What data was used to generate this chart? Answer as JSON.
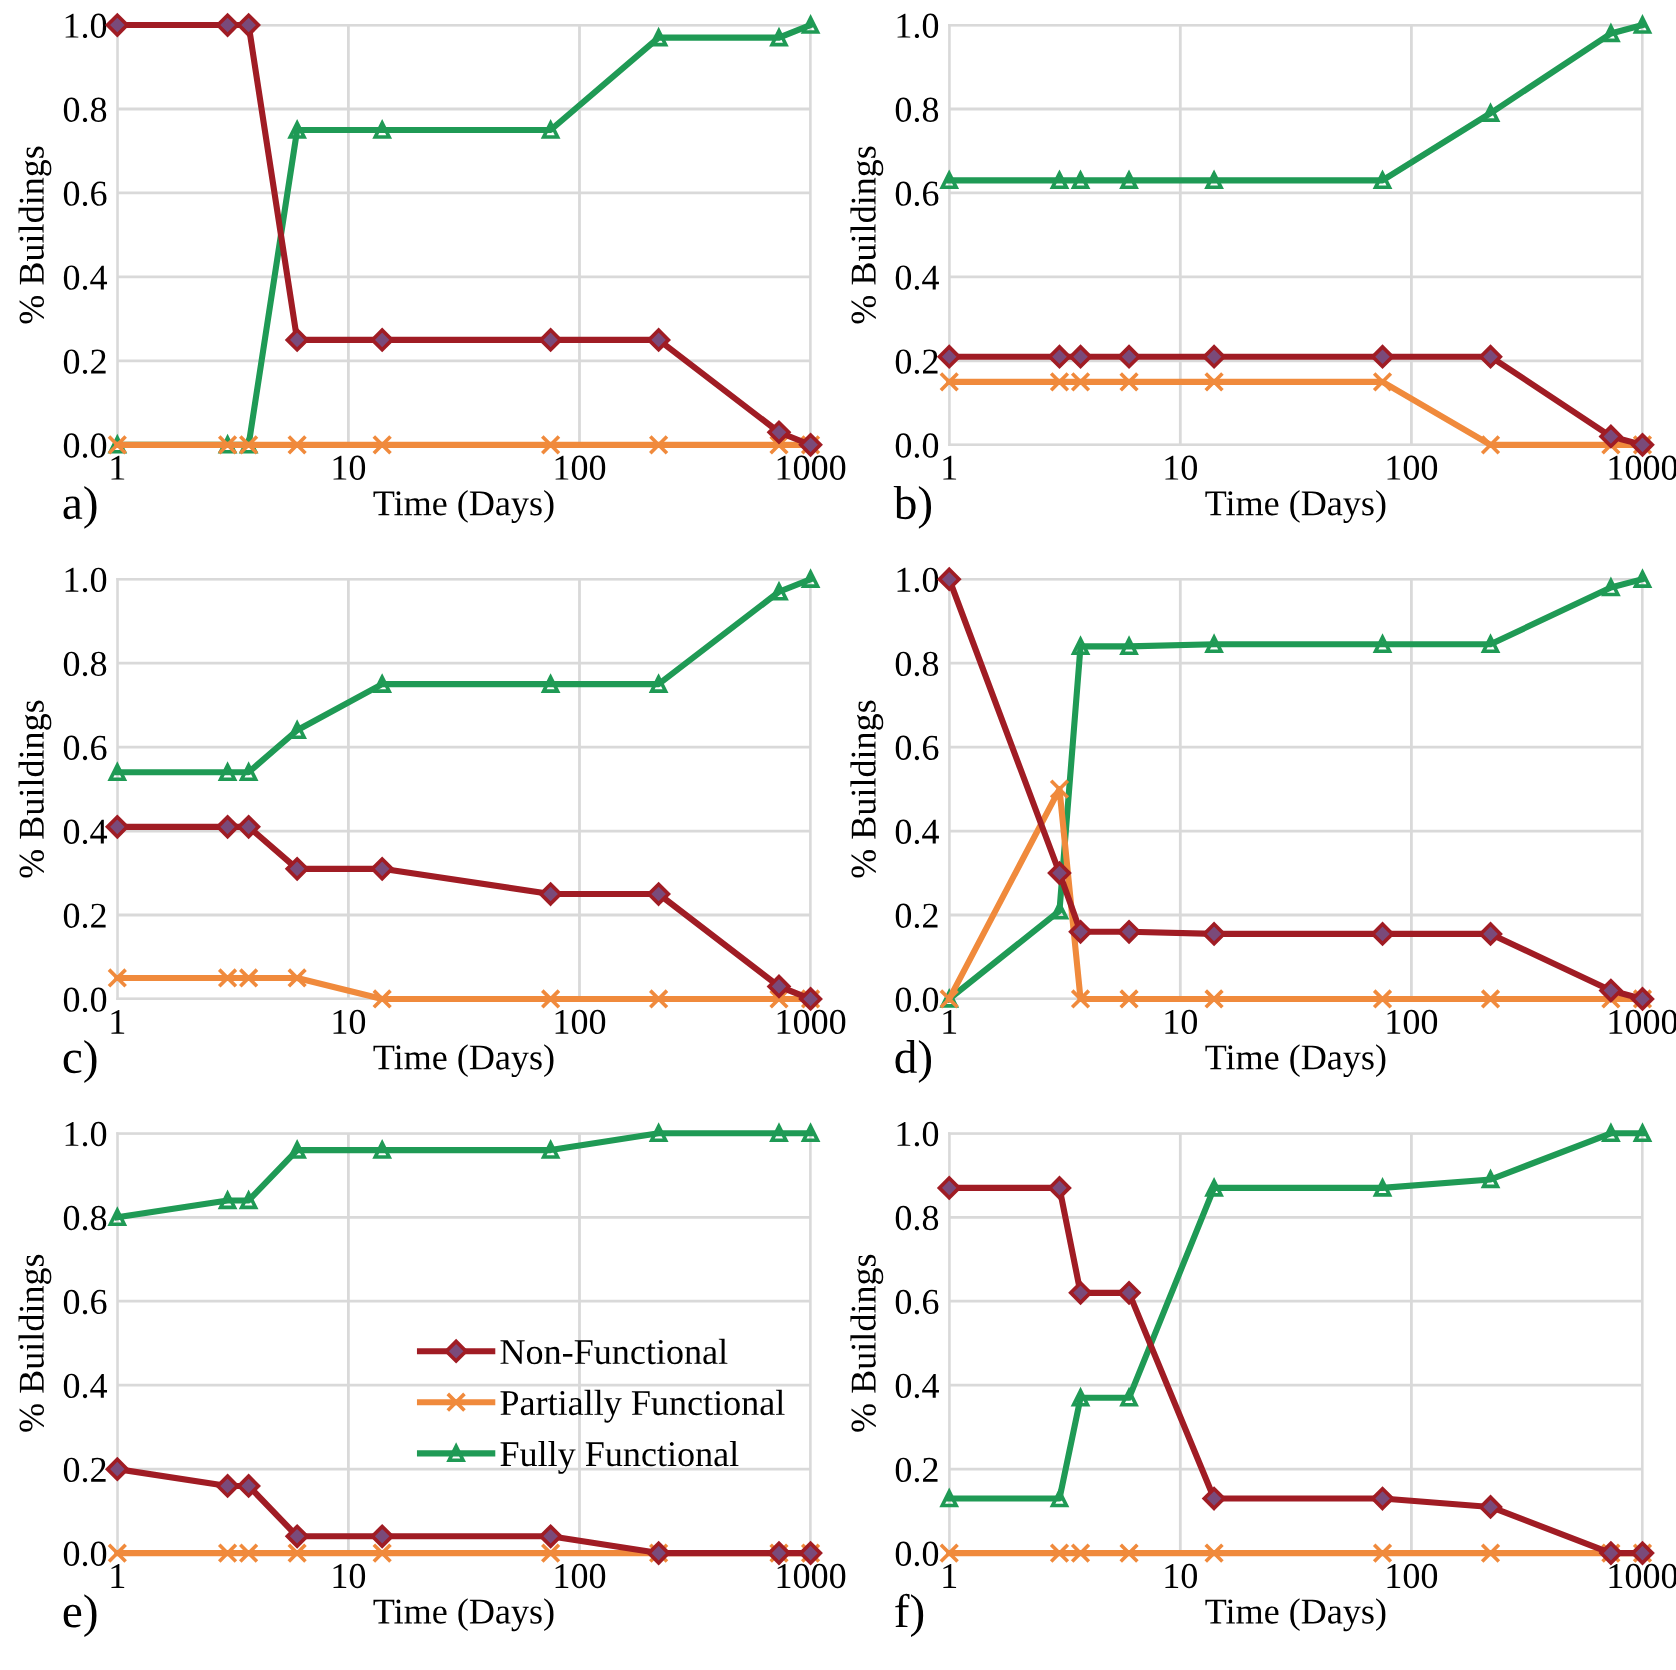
{
  "chart_data": [
    {
      "type": "line",
      "xlabel": "Time (Days)",
      "ylabel": "% Buildings",
      "annotations": [
        "a)"
      ],
      "x": [
        1,
        3,
        3.7,
        6,
        14,
        75,
        220,
        730,
        1000
      ],
      "xlim": [
        1,
        1000
      ],
      "ylim": [
        0,
        1
      ],
      "log": "x",
      "grid": true,
      "xticks": [
        1,
        10,
        100,
        1000
      ],
      "yticks": [
        {
          "value": 0,
          "label": "0.0"
        },
        {
          "value": 0.2,
          "label": "0.2"
        },
        {
          "value": 0.4,
          "label": "0.4"
        },
        {
          "value": 0.6,
          "label": "0.6"
        },
        {
          "value": 0.8,
          "label": "0.8"
        },
        {
          "value": 1,
          "label": "1.0"
        }
      ],
      "series": [
        {
          "color": "#a01c24",
          "marker": "diamond",
          "values": [
            1,
            1,
            1,
            0.25,
            0.25,
            0.25,
            0.25,
            0.03,
            0
          ]
        },
        {
          "color": "#f08a3c",
          "marker": "cross",
          "values": [
            0,
            0,
            0,
            0,
            0,
            0,
            0,
            0,
            0
          ]
        },
        {
          "color": "#1f9a55",
          "marker": "triangle",
          "values": [
            0,
            0,
            0,
            0.75,
            0.75,
            0.75,
            0.97,
            0.97,
            1
          ]
        }
      ]
    },
    {
      "type": "line",
      "xlabel": "Time (Days)",
      "ylabel": "% Buildings",
      "annotations": [
        "b)"
      ],
      "x": [
        1,
        3,
        3.7,
        6,
        14,
        75,
        220,
        730,
        1000
      ],
      "xlim": [
        1,
        1000
      ],
      "ylim": [
        0,
        1
      ],
      "log": "x",
      "grid": true,
      "xticks": [
        1,
        10,
        100,
        1000
      ],
      "yticks": [
        {
          "value": 0,
          "label": "0.0"
        },
        {
          "value": 0.2,
          "label": "0.2"
        },
        {
          "value": 0.4,
          "label": "0.4"
        },
        {
          "value": 0.6,
          "label": "0.6"
        },
        {
          "value": 0.8,
          "label": "0.8"
        },
        {
          "value": 1,
          "label": "1.0"
        }
      ],
      "series": [
        {
          "color": "#a01c24",
          "marker": "diamond",
          "values": [
            0.21,
            0.21,
            0.21,
            0.21,
            0.21,
            0.21,
            0.21,
            0.02,
            0
          ]
        },
        {
          "color": "#f08a3c",
          "marker": "cross",
          "values": [
            0.15,
            0.15,
            0.15,
            0.15,
            0.15,
            0.15,
            0,
            0,
            0
          ]
        },
        {
          "color": "#1f9a55",
          "marker": "triangle",
          "values": [
            0.63,
            0.63,
            0.63,
            0.63,
            0.63,
            0.63,
            0.79,
            0.98,
            1
          ]
        }
      ]
    },
    {
      "type": "line",
      "xlabel": "Time (Days)",
      "ylabel": "% Buildings",
      "annotations": [
        "c)"
      ],
      "x": [
        1,
        3,
        3.7,
        6,
        14,
        75,
        220,
        730,
        1000
      ],
      "xlim": [
        1,
        1000
      ],
      "ylim": [
        0,
        1
      ],
      "log": "x",
      "grid": true,
      "xticks": [
        1,
        10,
        100,
        1000
      ],
      "yticks": [
        {
          "value": 0,
          "label": "0.0"
        },
        {
          "value": 0.2,
          "label": "0.2"
        },
        {
          "value": 0.4,
          "label": "0.4"
        },
        {
          "value": 0.6,
          "label": "0.6"
        },
        {
          "value": 0.8,
          "label": "0.8"
        },
        {
          "value": 1,
          "label": "1.0"
        }
      ],
      "series": [
        {
          "color": "#a01c24",
          "marker": "diamond",
          "values": [
            0.41,
            0.41,
            0.41,
            0.31,
            0.31,
            0.25,
            0.25,
            0.03,
            0
          ]
        },
        {
          "color": "#f08a3c",
          "marker": "cross",
          "values": [
            0.05,
            0.05,
            0.05,
            0.05,
            0,
            0,
            0,
            0,
            0
          ]
        },
        {
          "color": "#1f9a55",
          "marker": "triangle",
          "values": [
            0.54,
            0.54,
            0.54,
            0.64,
            0.75,
            0.75,
            0.75,
            0.97,
            1
          ]
        }
      ]
    },
    {
      "type": "line",
      "xlabel": "Time (Days)",
      "ylabel": "% Buildings",
      "annotations": [
        "d)"
      ],
      "x": [
        1,
        3,
        3.7,
        6,
        14,
        75,
        220,
        730,
        1000
      ],
      "xlim": [
        1,
        1000
      ],
      "ylim": [
        0,
        1
      ],
      "log": "x",
      "grid": true,
      "xticks": [
        1,
        10,
        100,
        1000
      ],
      "yticks": [
        {
          "value": 0,
          "label": "0.0"
        },
        {
          "value": 0.2,
          "label": "0.2"
        },
        {
          "value": 0.4,
          "label": "0.4"
        },
        {
          "value": 0.6,
          "label": "0.6"
        },
        {
          "value": 0.8,
          "label": "0.8"
        },
        {
          "value": 1,
          "label": "1.0"
        }
      ],
      "series": [
        {
          "color": "#a01c24",
          "marker": "diamond",
          "values": [
            1,
            0.3,
            0.16,
            0.16,
            0.155,
            0.155,
            0.155,
            0.02,
            0
          ]
        },
        {
          "color": "#f08a3c",
          "marker": "cross",
          "values": [
            0,
            0.5,
            0,
            0,
            0,
            0,
            0,
            0,
            0
          ]
        },
        {
          "color": "#1f9a55",
          "marker": "triangle",
          "values": [
            0,
            0.21,
            0.84,
            0.84,
            0.845,
            0.845,
            0.845,
            0.98,
            1
          ]
        }
      ]
    },
    {
      "type": "line",
      "xlabel": "Time (Days)",
      "ylabel": "% Buildings",
      "annotations": [
        "e)"
      ],
      "x": [
        1,
        3,
        3.7,
        6,
        14,
        75,
        220,
        730,
        1000
      ],
      "xlim": [
        1,
        1000
      ],
      "ylim": [
        0,
        1
      ],
      "log": "x",
      "grid": true,
      "legend": "center right",
      "xticks": [
        1,
        10,
        100,
        1000
      ],
      "yticks": [
        {
          "value": 0,
          "label": "0.0"
        },
        {
          "value": 0.2,
          "label": "0.2"
        },
        {
          "value": 0.4,
          "label": "0.4"
        },
        {
          "value": 0.6,
          "label": "0.6"
        },
        {
          "value": 0.8,
          "label": "0.8"
        },
        {
          "value": 1,
          "label": "1.0"
        }
      ],
      "series": [
        {
          "name": "Non-Functional",
          "color": "#a01c24",
          "marker": "diamond",
          "values": [
            0.2,
            0.16,
            0.16,
            0.04,
            0.04,
            0.04,
            0,
            0,
            0
          ]
        },
        {
          "name": "Partially Functional",
          "color": "#f08a3c",
          "marker": "cross",
          "values": [
            0,
            0,
            0,
            0,
            0,
            0,
            0,
            0,
            0
          ]
        },
        {
          "name": "Fully Functional",
          "color": "#1f9a55",
          "marker": "triangle",
          "values": [
            0.8,
            0.84,
            0.84,
            0.96,
            0.96,
            0.96,
            1,
            1,
            1
          ]
        }
      ]
    },
    {
      "type": "line",
      "xlabel": "Time (Days)",
      "ylabel": "% Buildings",
      "annotations": [
        "f)"
      ],
      "x": [
        1,
        3,
        3.7,
        6,
        14,
        75,
        220,
        730,
        1000
      ],
      "xlim": [
        1,
        1000
      ],
      "ylim": [
        0,
        1
      ],
      "log": "x",
      "grid": true,
      "xticks": [
        1,
        10,
        100,
        1000
      ],
      "yticks": [
        {
          "value": 0,
          "label": "0.0"
        },
        {
          "value": 0.2,
          "label": "0.2"
        },
        {
          "value": 0.4,
          "label": "0.4"
        },
        {
          "value": 0.6,
          "label": "0.6"
        },
        {
          "value": 0.8,
          "label": "0.8"
        },
        {
          "value": 1,
          "label": "1.0"
        }
      ],
      "series": [
        {
          "color": "#a01c24",
          "marker": "diamond",
          "values": [
            0.87,
            0.87,
            0.62,
            0.62,
            0.13,
            0.13,
            0.11,
            0,
            0
          ]
        },
        {
          "color": "#f08a3c",
          "marker": "cross",
          "values": [
            0,
            0,
            0,
            0,
            0,
            0,
            0,
            0,
            0
          ]
        },
        {
          "color": "#1f9a55",
          "marker": "triangle",
          "values": [
            0.13,
            0.13,
            0.37,
            0.37,
            0.87,
            0.87,
            0.89,
            1,
            1
          ]
        }
      ]
    }
  ]
}
